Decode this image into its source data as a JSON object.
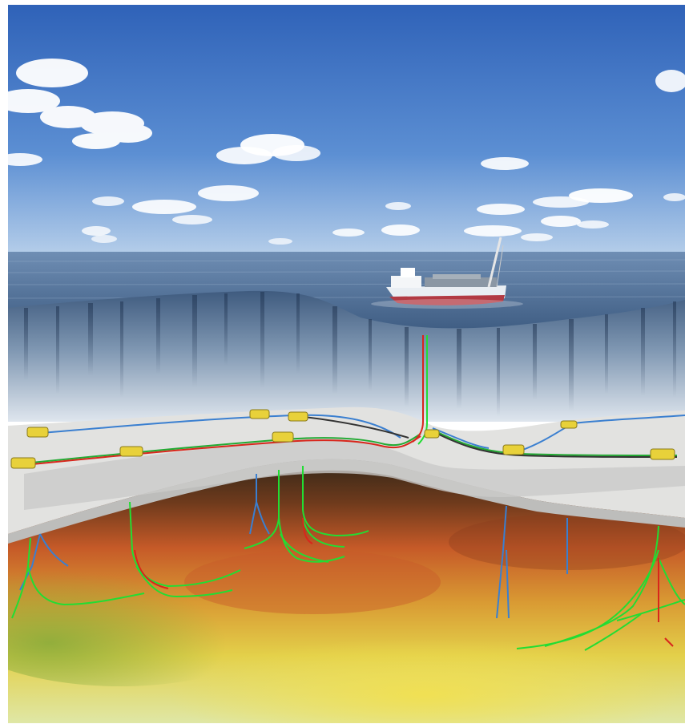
{
  "scene": {
    "colors": {
      "sky_top": "#3a6cc0",
      "sky_bottom": "#a9c4e6",
      "sea_surface": "#5d7fa6",
      "seabed": "#e4e4e2",
      "subsurface_warm": "#c9532a",
      "subsurface_mid": "#e7c34a",
      "subsurface_light": "#dfe6a0",
      "well_green": "#22dd33",
      "well_blue": "#3a7fd0",
      "well_red": "#d8261c",
      "template_yellow": "#e8d13a"
    }
  }
}
